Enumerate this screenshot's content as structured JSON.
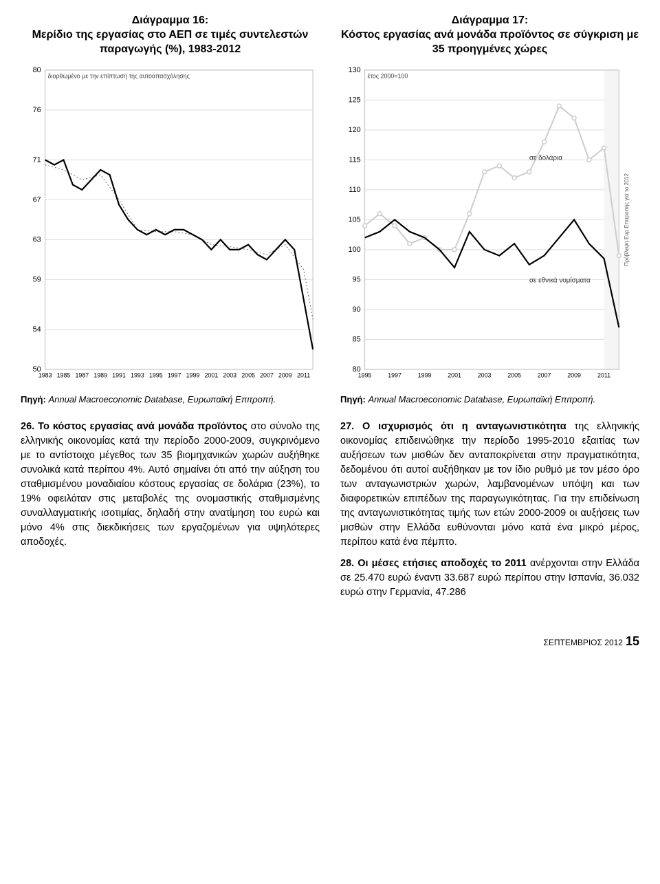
{
  "chart16": {
    "type": "line",
    "title": "Διάγραμμα 16:\nΜερίδιο της εργασίας στο ΑΕΠ σε τιμές συντελεστών παραγωγής (%), 1983-2012",
    "note": "διορθωμένο με την επίπτωση της αυτοαπασχόλησης",
    "y_ticks": [
      80,
      76,
      71,
      67,
      63,
      59,
      54,
      50
    ],
    "ylim": [
      50,
      80
    ],
    "x_ticks": [
      1983,
      1985,
      1987,
      1989,
      1991,
      1993,
      1995,
      1997,
      1999,
      2001,
      2003,
      2005,
      2007,
      2009,
      2011
    ],
    "series": {
      "x": [
        1983,
        1984,
        1985,
        1986,
        1987,
        1988,
        1989,
        1990,
        1991,
        1992,
        1993,
        1994,
        1995,
        1996,
        1997,
        1998,
        1999,
        2000,
        2001,
        2002,
        2003,
        2004,
        2005,
        2006,
        2007,
        2008,
        2009,
        2010,
        2011,
        2012
      ],
      "y": [
        71,
        70.5,
        71,
        68.5,
        68,
        69,
        70,
        69.5,
        66.5,
        65,
        64,
        63.5,
        64,
        63.5,
        64,
        64,
        63.5,
        63,
        62,
        63,
        62,
        62,
        62.5,
        61.5,
        61,
        62,
        63,
        62,
        57,
        52
      ],
      "color": "#000000",
      "line_width": 2.2
    },
    "smoothed": {
      "x": [
        1983,
        1985,
        1987,
        1989,
        1991,
        1993,
        1995,
        1997,
        1999,
        2001,
        2003,
        2005,
        2007,
        2009,
        2011,
        2012
      ],
      "y": [
        70.5,
        70,
        69,
        69.5,
        67,
        64,
        63.8,
        63.8,
        63.5,
        62.5,
        62.3,
        62,
        61.5,
        62.5,
        60,
        55
      ],
      "color": "#666666",
      "dash": "2,3",
      "line_width": 1
    },
    "background_color": "#ffffff",
    "grid_color": "#dddddd",
    "source": {
      "label": "Πηγή:",
      "text": "Annual Macroeconomic Database, Ευρωπαϊκή Επιτροπή."
    }
  },
  "chart17": {
    "type": "line",
    "title": "Διάγραμμα 17:\nΚόστος εργασίας ανά μονάδα προϊόντος σε σύγκριση με 35 προηγμένες χώρες",
    "note_top": "έτος 2000=100",
    "side_note": "Πρόβλεψη Ευρ.Επιτροπής για το 2012",
    "label_dollar": "σε δολάρια",
    "label_national": "σε εθνικά νομίσματα",
    "y_ticks": [
      130,
      125,
      120,
      115,
      110,
      105,
      100,
      95,
      90,
      85,
      80
    ],
    "ylim": [
      80,
      130
    ],
    "x_ticks": [
      1995,
      1997,
      1999,
      2001,
      2003,
      2005,
      2007,
      2009,
      2011
    ],
    "series_dollar": {
      "x": [
        1995,
        1996,
        1997,
        1998,
        1999,
        2000,
        2001,
        2002,
        2003,
        2004,
        2005,
        2006,
        2007,
        2008,
        2009,
        2010,
        2011,
        2012
      ],
      "y": [
        104,
        106,
        104,
        101,
        102,
        100,
        100,
        106,
        113,
        114,
        112,
        113,
        118,
        124,
        122,
        115,
        117,
        99
      ],
      "color": "#cccccc",
      "marker_color": "#cccccc",
      "line_width": 2
    },
    "series_national": {
      "x": [
        1995,
        1996,
        1997,
        1998,
        1999,
        2000,
        2001,
        2002,
        2003,
        2004,
        2005,
        2006,
        2007,
        2008,
        2009,
        2010,
        2011,
        2012
      ],
      "y": [
        102,
        103,
        105,
        103,
        102,
        100,
        97,
        103,
        100,
        99,
        101,
        97.5,
        99,
        102,
        105,
        101,
        98.5,
        87
      ],
      "color": "#000000",
      "line_width": 2.2
    },
    "background_color": "#ffffff",
    "grid_color": "#dddddd",
    "source": {
      "label": "Πηγή:",
      "text": "Annual Macroeconomic Database, Ευρωπαϊκή Επιτροπή."
    }
  },
  "body": {
    "p26_lead": "26. Το κόστος εργασίας ανά μονάδα προϊόντος",
    "p26_rest": " στο σύνολο της ελληνικής οικονομίας κατά την περίοδο 2000-2009, συγκρινόμενο με το αντίστοιχο μέγεθος των 35 βιομηχανικών χωρών αυξήθηκε συνολικά κατά περίπου 4%. Αυτό σημαίνει ότι από την αύξηση του σταθμισμένου μοναδιαίου κόστους εργασίας σε δολάρια (23%), το 19% οφειλόταν στις μεταβολές της ονομαστικής σταθμισμένης συναλλαγματικής ισοτιμίας, δηλαδή στην ανατίμηση του ευρώ και μόνο 4% στις διεκδικήσεις των εργαζομένων για υψηλότερες αποδοχές.",
    "p27_lead": "27. Ο ισχυρισμός ότι η ανταγωνιστικότητα",
    "p27_rest": " της ελληνικής οικονομίας επιδεινώθηκε την περίοδο 1995-2010 εξαιτίας των αυξήσεων των μισθών δεν ανταποκρίνεται στην πραγματικότητα, δεδομένου ότι αυτοί αυξήθηκαν με τον ίδιο ρυθμό με τον μέσο όρο των ανταγωνιστριών χωρών, λαμβανομένων υπόψη και των διαφορετικών επιπέδων της παραγωγικότητας. Για την επιδείνωση της ανταγωνιστικότητας τιμής των ετών 2000-2009 οι αυξήσεις των μισθών στην Ελλάδα ευθύνονται μόνο κατά ένα μικρό μέρος, περίπου κατά ένα πέμπτο.",
    "p28_lead": "28. Οι μέσες ετήσιες αποδοχές το 2011",
    "p28_rest": " ανέρχονται στην Ελλάδα σε 25.470 ευρώ έναντι 33.687 ευρώ περίπου στην Ισπανία, 36.032 ευρώ στην Γερμανία, 47.286"
  },
  "footer": {
    "issue": "ΣΕΠΤΕΜΒΡΙΟΣ 2012",
    "page": "15"
  }
}
